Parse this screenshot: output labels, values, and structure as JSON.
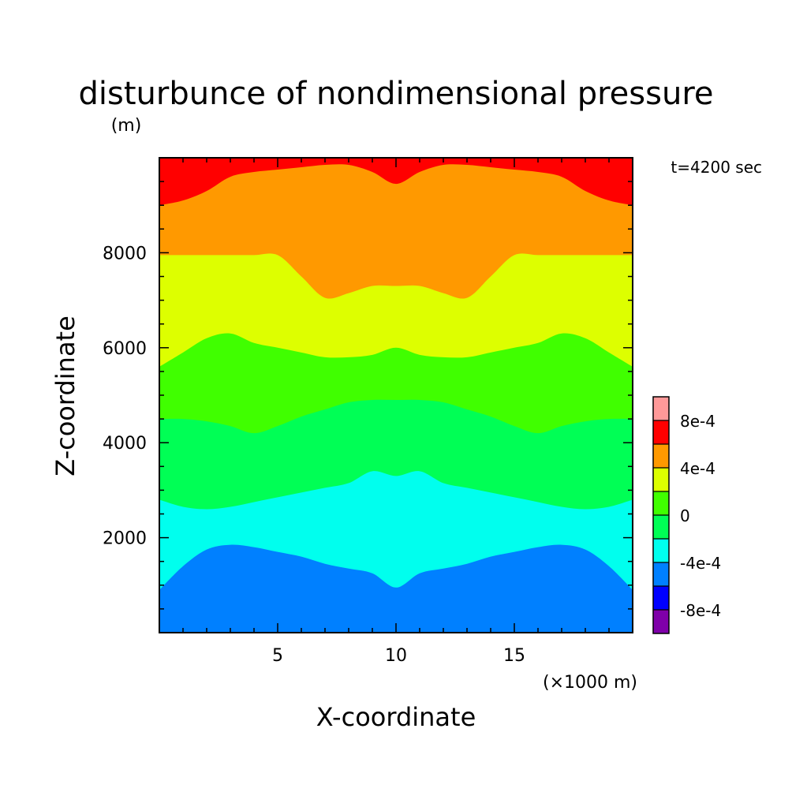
{
  "chart_data": {
    "type": "heatmap",
    "title": "disturbunce of nondimensional pressure",
    "subtitle": "(m)",
    "time_label": "t=4200 sec",
    "xlabel": "X-coordinate",
    "ylabel": "Z-coordinate",
    "x_unit_label": "(×1000 m)",
    "xlim": [
      0,
      20
    ],
    "ylim": [
      0,
      10000
    ],
    "x_tick_labels": [
      "5",
      "10",
      "15"
    ],
    "y_tick_labels": [
      "2000",
      "4000",
      "6000",
      "8000"
    ],
    "x_ticks": [
      5,
      10,
      15
    ],
    "y_ticks": [
      2000,
      4000,
      6000,
      8000
    ],
    "colorbar": {
      "colors": [
        "#7f00a9",
        "#0000ff",
        "#0080ff",
        "#00ffee",
        "#00ff55",
        "#40ff00",
        "#ddff00",
        "#ff9900",
        "#ff0000",
        "#ff9999"
      ],
      "boundaries": [
        -0.001,
        -0.0008,
        -0.0006,
        -0.0004,
        -0.0002,
        0,
        0.0002,
        0.0004,
        0.0006,
        0.0008,
        0.001
      ],
      "tick_values": [
        0.0008,
        0.0004,
        0,
        -0.0004,
        -0.0008
      ],
      "tick_labels": [
        "8e-4",
        "4e-4",
        "0",
        "-4e-4",
        "-8e-4"
      ]
    },
    "contour_levels": [
      {
        "level": -0.0006,
        "z": [
          0,
          0,
          0,
          0,
          0,
          0,
          0,
          0,
          0,
          0,
          0,
          0,
          0,
          0,
          0,
          0,
          0,
          0,
          0,
          0,
          0
        ]
      },
      {
        "level": -0.0004,
        "z": [
          900,
          1400,
          1750,
          1850,
          1800,
          1700,
          1600,
          1450,
          1350,
          1250,
          950,
          1250,
          1350,
          1450,
          1600,
          1700,
          1800,
          1850,
          1750,
          1400,
          900
        ]
      },
      {
        "level": -0.0002,
        "z": [
          2800,
          2650,
          2600,
          2650,
          2750,
          2850,
          2950,
          3050,
          3150,
          3400,
          3300,
          3400,
          3150,
          3050,
          2950,
          2850,
          2750,
          2650,
          2600,
          2650,
          2800
        ]
      },
      {
        "level": 0,
        "z": [
          4500,
          4500,
          4450,
          4350,
          4200,
          4350,
          4550,
          4700,
          4850,
          4900,
          4900,
          4900,
          4850,
          4700,
          4550,
          4350,
          4200,
          4350,
          4450,
          4500,
          4500
        ]
      },
      {
        "level": 0.0002,
        "z": [
          5600,
          5900,
          6200,
          6300,
          6100,
          6000,
          5900,
          5800,
          5800,
          5850,
          6000,
          5850,
          5800,
          5800,
          5900,
          6000,
          6100,
          6300,
          6200,
          5900,
          5600
        ]
      },
      {
        "level": 0.0004,
        "z": [
          7950,
          7950,
          7950,
          7950,
          7950,
          7950,
          7500,
          7050,
          7150,
          7300,
          7300,
          7300,
          7150,
          7050,
          7500,
          7950,
          7950,
          7950,
          7950,
          7950,
          7950
        ]
      },
      {
        "level": 0.0006,
        "z": [
          9000,
          9100,
          9300,
          9600,
          9700,
          9750,
          9800,
          9850,
          9850,
          9700,
          9450,
          9700,
          9850,
          9850,
          9800,
          9750,
          9700,
          9600,
          9300,
          9100,
          9000
        ]
      }
    ]
  }
}
